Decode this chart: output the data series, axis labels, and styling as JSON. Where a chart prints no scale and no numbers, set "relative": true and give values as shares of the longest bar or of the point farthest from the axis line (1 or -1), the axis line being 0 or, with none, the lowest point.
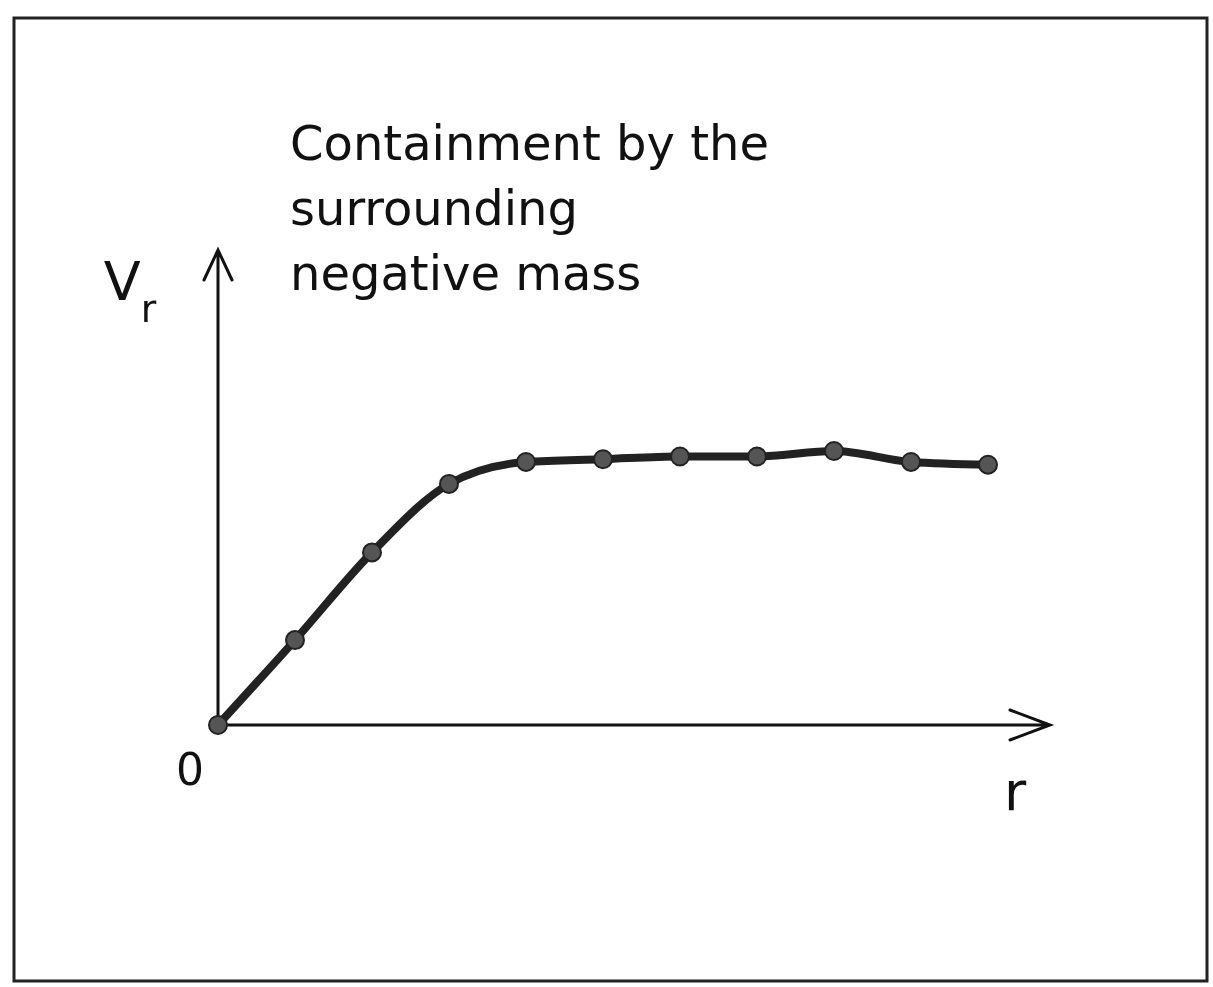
{
  "chart_data": {
    "type": "line",
    "title": "Containment by the surrounding negative mass",
    "xlabel": "r",
    "ylabel": "V$_{r}$",
    "relative": true,
    "categories": [
      null,
      null,
      null,
      null,
      null,
      null,
      null,
      null,
      null,
      null,
      null
    ],
    "series": [
      {
        "color": "#222222",
        "values": [
          0,
          0.31,
          0.63,
          0.88,
          0.96,
          0.97,
          0.98,
          0.98,
          1,
          0.96,
          0.95
        ]
      }
    ],
    "marker": "circle",
    "line_style": "solid",
    "annotations": [
      "0"
    ]
  }
}
